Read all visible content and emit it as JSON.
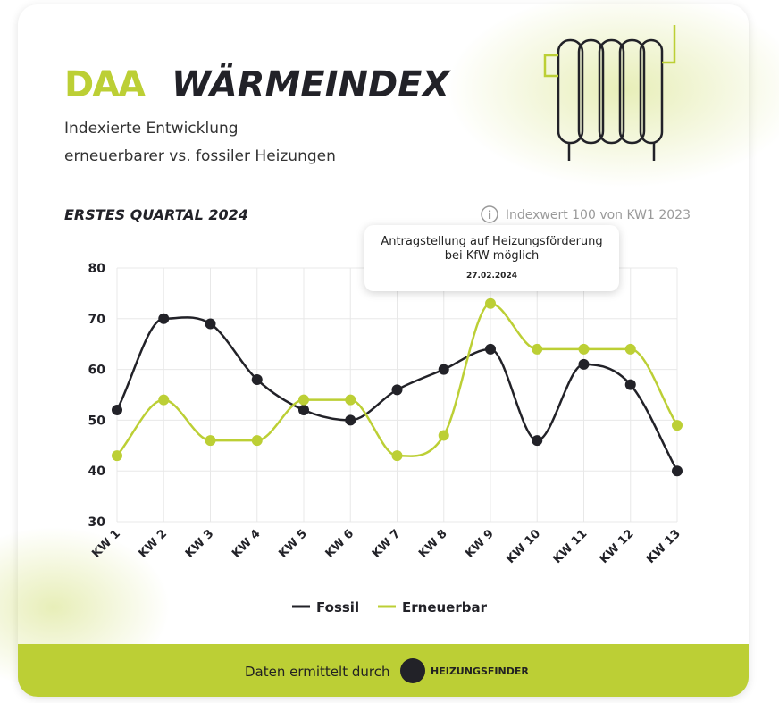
{
  "header": {
    "logo": "DAA",
    "title": "WÄRMEINDEX",
    "subtitle": [
      "Indexierte Entwicklung",
      "erneuerbarer vs. fossiler Heizungen"
    ]
  },
  "chart_data": {
    "type": "line",
    "title": "ERSTES QUARTAL 2024",
    "note": "Indexwert 100 von KW1 2023",
    "categories": [
      "KW 1",
      "KW 2",
      "KW 3",
      "KW 4",
      "KW 5",
      "KW 6",
      "KW 7",
      "KW 8",
      "KW 9",
      "KW 10",
      "KW 11",
      "KW 12",
      "KW 13"
    ],
    "series": [
      {
        "name": "Fossil",
        "color": "#222228",
        "values": [
          52,
          70,
          69,
          58,
          52,
          50,
          56,
          60,
          64,
          46,
          61,
          57,
          40
        ]
      },
      {
        "name": "Erneuerbar",
        "color": "#bccf35",
        "values": [
          43,
          54,
          46,
          46,
          54,
          54,
          43,
          47,
          73,
          64,
          64,
          64,
          49
        ]
      }
    ],
    "ylim": [
      30,
      80
    ],
    "yticks": [
      30,
      40,
      50,
      60,
      70,
      80
    ],
    "grid": true,
    "annotation": {
      "text": "Antragstellung auf Heizungsförderung bei KfW möglich",
      "date": "27.02.2024"
    }
  },
  "footer": {
    "text": "Daten ermittelt durch",
    "brand": "HEIZUNGSFINDER"
  }
}
